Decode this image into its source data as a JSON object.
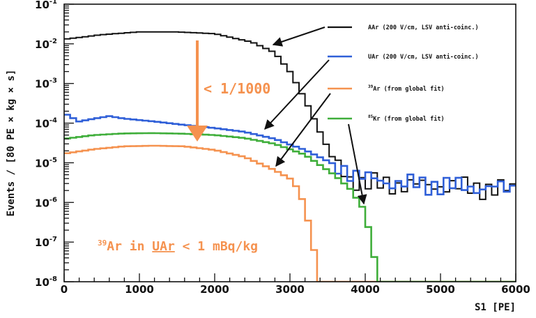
{
  "chart_data": {
    "type": "line",
    "xlabel": "S1 [PE]",
    "ylabel": "Events / [80 PE × kg × s]",
    "xlim": [
      0,
      6000
    ],
    "ylim": [
      1e-08,
      0.1
    ],
    "yscale": "log",
    "x_ticks": [
      "0",
      "1000",
      "2000",
      "3000",
      "4000",
      "5000",
      "6000"
    ],
    "y_ticks": [
      {
        "base": "10",
        "exp": "-8"
      },
      {
        "base": "10",
        "exp": "-7"
      },
      {
        "base": "10",
        "exp": "-6"
      },
      {
        "base": "10",
        "exp": "-5"
      },
      {
        "base": "10",
        "exp": "-4"
      },
      {
        "base": "10",
        "exp": "-3"
      },
      {
        "base": "10",
        "exp": "-2"
      },
      {
        "base": "10",
        "exp": "-1"
      }
    ],
    "grid": false,
    "legend_position": "top-right",
    "bin_width": 80,
    "series": [
      {
        "name": "AAr (200 V/cm, LSV anti-coinc.)",
        "color": "#111111",
        "points": [
          [
            0,
            0.013
          ],
          [
            500,
            0.017
          ],
          [
            1000,
            0.02
          ],
          [
            1500,
            0.02
          ],
          [
            2000,
            0.018
          ],
          [
            2500,
            0.011
          ],
          [
            2800,
            0.006
          ],
          [
            3000,
            0.002
          ],
          [
            3200,
            0.0004
          ],
          [
            3400,
            6e-05
          ],
          [
            3600,
            1e-05
          ],
          [
            3800,
            4e-06
          ],
          [
            4000,
            3e-06
          ],
          [
            4400,
            2.8e-06
          ],
          [
            5000,
            2.7e-06
          ],
          [
            5500,
            2.3e-06
          ],
          [
            6000,
            2.1e-06
          ]
        ]
      },
      {
        "name": "UAr (200 V/cm, LSV anti-coinc.)",
        "color": "#2f5fd8",
        "points": [
          [
            0,
            0.00018
          ],
          [
            200,
            0.00011
          ],
          [
            400,
            0.00013
          ],
          [
            600,
            0.00015
          ],
          [
            800,
            0.00013
          ],
          [
            1200,
            0.00011
          ],
          [
            1600,
            9e-05
          ],
          [
            2000,
            7.5e-05
          ],
          [
            2400,
            6e-05
          ],
          [
            2800,
            4e-05
          ],
          [
            3200,
            2.1e-05
          ],
          [
            3600,
            9e-06
          ],
          [
            4000,
            4e-06
          ],
          [
            4500,
            3e-06
          ],
          [
            5000,
            2.7e-06
          ],
          [
            5500,
            2.4e-06
          ],
          [
            6000,
            2.2e-06
          ]
        ]
      },
      {
        "name": "39Ar (from global fit)",
        "color": "#f5924f",
        "points": [
          [
            0,
            1.7e-05
          ],
          [
            400,
            2.2e-05
          ],
          [
            800,
            2.6e-05
          ],
          [
            1200,
            2.7e-05
          ],
          [
            1600,
            2.6e-05
          ],
          [
            2000,
            2.1e-05
          ],
          [
            2400,
            1.4e-05
          ],
          [
            2800,
            6.5e-06
          ],
          [
            3000,
            4e-06
          ],
          [
            3100,
            2.3e-06
          ],
          [
            3200,
            8e-07
          ],
          [
            3300,
            1e-07
          ],
          [
            3400,
            1e-08
          ]
        ]
      },
      {
        "name": "85Kr (from global fit)",
        "color": "#3fae3a",
        "points": [
          [
            0,
            4e-05
          ],
          [
            400,
            5e-05
          ],
          [
            800,
            5.5e-05
          ],
          [
            1200,
            5.6e-05
          ],
          [
            1600,
            5.4e-05
          ],
          [
            2000,
            5e-05
          ],
          [
            2400,
            4.2e-05
          ],
          [
            2800,
            3e-05
          ],
          [
            3200,
            1.6e-05
          ],
          [
            3600,
            4.8e-06
          ],
          [
            3800,
            2.2e-06
          ],
          [
            4000,
            6e-07
          ],
          [
            4100,
            6e-08
          ],
          [
            4200,
            1e-08
          ]
        ]
      }
    ],
    "annotations": [
      {
        "text": "< 1/1000",
        "color": "#f5924f"
      },
      {
        "sup": "39",
        "text": "Ar in ",
        "underlined": "UAr",
        "rest": " < 1 mBq/kg",
        "color": "#f5924f"
      }
    ]
  },
  "legend": [
    {
      "label": "AAr (200 V/cm, LSV anti-coinc.)",
      "sup": ""
    },
    {
      "label": "UAr (200 V/cm, LSV anti-coinc.)",
      "sup": ""
    },
    {
      "label": "Ar (from global fit)",
      "sup": "39"
    },
    {
      "label": "Kr (from global fit)",
      "sup": "85"
    }
  ]
}
